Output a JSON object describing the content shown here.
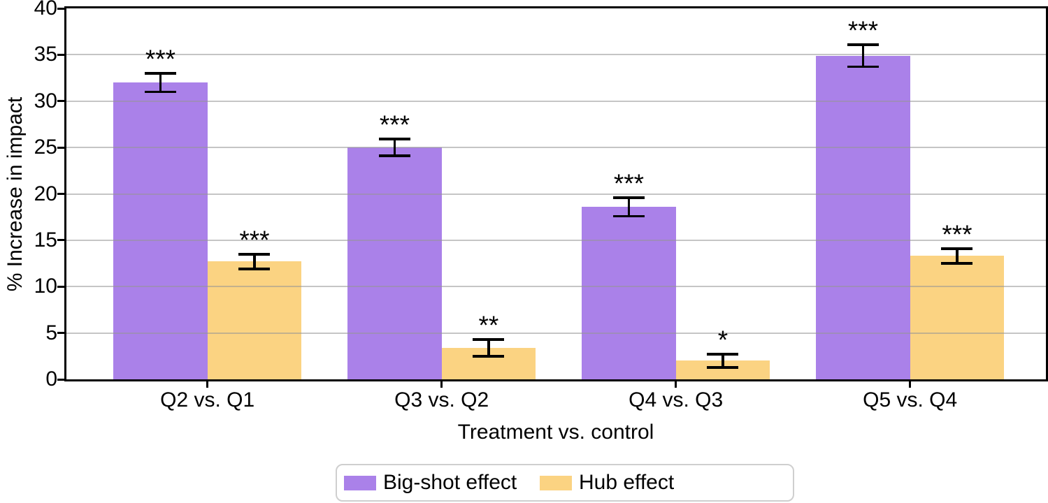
{
  "chart_data": {
    "type": "bar",
    "title": "",
    "xlabel": "Treatment vs. control",
    "ylabel": "% Increase in impact",
    "categories": [
      "Q2 vs. Q1",
      "Q3 vs. Q2",
      "Q4 vs. Q3",
      "Q5 vs. Q4"
    ],
    "series": [
      {
        "name": "Big-shot effect",
        "color": "#aa81e9",
        "values": [
          32.0,
          25.0,
          18.6,
          34.9
        ],
        "error_bars": [
          1.0,
          0.9,
          1.0,
          1.2
        ],
        "significance": [
          "***",
          "***",
          "***",
          "***"
        ]
      },
      {
        "name": "Hub effect",
        "color": "#fbd382",
        "values": [
          12.7,
          3.4,
          2.0,
          13.3
        ],
        "error_bars": [
          0.8,
          0.9,
          0.7,
          0.8
        ],
        "significance": [
          "***",
          "**",
          "*",
          "***"
        ]
      }
    ],
    "ylim": [
      0,
      40
    ],
    "yticks": [
      0,
      5,
      10,
      15,
      20,
      25,
      30,
      35,
      40
    ],
    "grid": "horizontal",
    "legend_position": "bottom-center",
    "error_bar_color": "#000000"
  },
  "colors": {
    "axis": "#000000",
    "gridline": "#c6c6c6",
    "legend_border": "#cfcfcf",
    "background": "#ffffff"
  }
}
